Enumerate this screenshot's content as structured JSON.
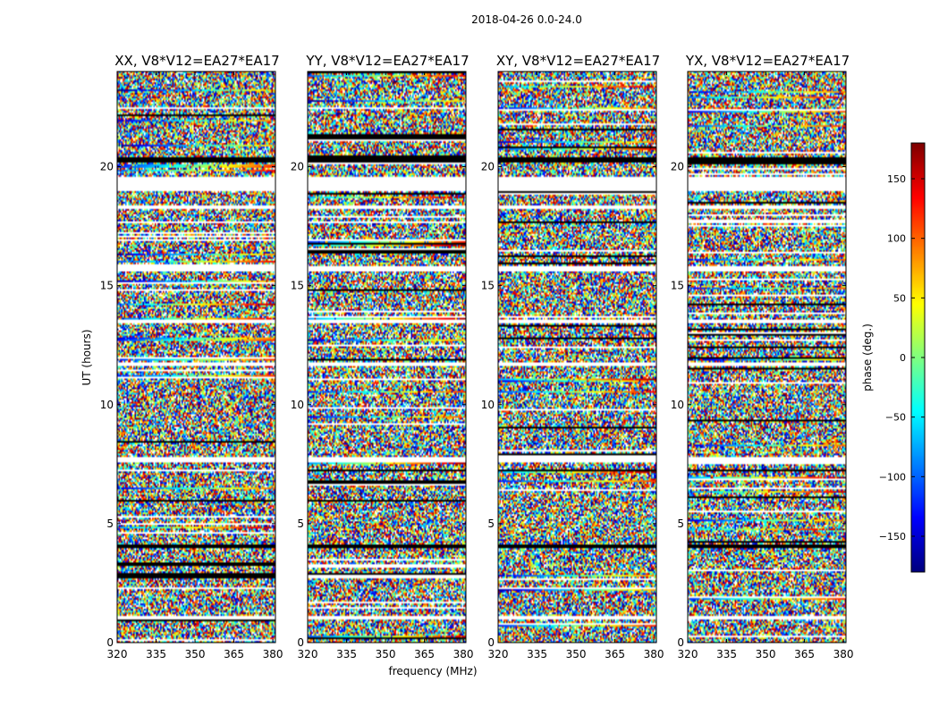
{
  "figure": {
    "suptitle": "2018-04-26 0.0-24.0"
  },
  "chart_data": {
    "type": "heatmap",
    "xlabel": "frequency (MHz)",
    "ylabel": "UT (hours)",
    "xlim": [
      320,
      381
    ],
    "ylim": [
      0,
      24
    ],
    "xticks": [
      320,
      335,
      350,
      365,
      380
    ],
    "yticks": [
      0,
      5,
      10,
      15,
      20
    ],
    "panels": [
      {
        "title": "XX, V8*V12=EA27*EA17"
      },
      {
        "title": "YY, V8*V12=EA27*EA17"
      },
      {
        "title": "XY, V8*V12=EA27*EA17"
      },
      {
        "title": "YX, V8*V12=EA27*EA17"
      }
    ],
    "colorbar": {
      "label": "phase (deg.)",
      "range": [
        -180,
        180
      ],
      "ticks": [
        150,
        100,
        50,
        0,
        -50,
        -100,
        -150
      ],
      "colormap": "jet"
    },
    "blank_bands_hours": [
      [
        19.0,
        19.6
      ],
      [
        18.2,
        18.4
      ],
      [
        15.6,
        15.8
      ],
      [
        13.4,
        13.6
      ],
      [
        11.6,
        11.8
      ],
      [
        7.6,
        7.8
      ],
      [
        1.0,
        1.1
      ]
    ],
    "dark_bands_hours": [
      [
        20.2,
        20.4
      ],
      [
        7.2,
        7.3
      ],
      [
        4.0,
        4.1
      ]
    ]
  }
}
